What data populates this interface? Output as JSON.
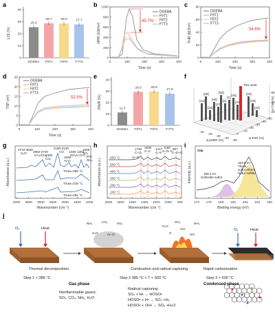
{
  "panels": {
    "a": {
      "label": "a",
      "ylabel": "LOI (%)",
      "ylim": [
        0,
        40
      ],
      "yticks": [
        "0",
        "10",
        "20",
        "30",
        "40"
      ],
      "categories": [
        "DGEBA",
        "F9T1",
        "F8T2",
        "F7T3"
      ],
      "values_text": [
        "25.4",
        "28.7",
        "28.5",
        "27.7"
      ]
    },
    "b": {
      "label": "b",
      "ylabel": "HRR (kW/m²)",
      "xlabel": "Time (s)",
      "yticks": [
        "0",
        "200",
        "400",
        "600",
        "800",
        "1000"
      ],
      "xticks": [
        "0",
        "100",
        "200",
        "300",
        "400"
      ],
      "legend": [
        "DGEBA",
        "F9T1",
        "F8T2",
        "F7T3"
      ],
      "annotation": "45.7%"
    },
    "c": {
      "label": "c",
      "ylabel": "THR (MJ/m²)",
      "xlabel": "Time (s)",
      "yticks": [
        "0",
        "20",
        "40",
        "60",
        "80"
      ],
      "xticks": [
        "0",
        "100",
        "200",
        "300",
        "400"
      ],
      "legend": [
        "DGEBA",
        "F9T1",
        "F8T2",
        "F7T3"
      ],
      "annotation": "54.6%"
    },
    "d": {
      "label": "d",
      "ylabel": "TSP (m²)",
      "xlabel": "Time (s)",
      "yticks": [
        "0",
        "5",
        "10",
        "15",
        "20",
        "25"
      ],
      "xticks": [
        "0",
        "100",
        "200",
        "300",
        "400"
      ],
      "legend": [
        "DGEBA",
        "F9T1",
        "F8T2",
        "F7T3"
      ],
      "annotation": "52.5%"
    },
    "e": {
      "label": "e",
      "ylabel": "RWR (%)",
      "ylim": [
        0,
        40
      ],
      "yticks": [
        "0",
        "10",
        "20",
        "30",
        "40"
      ],
      "categories": [
        "DGEBA",
        "F9T1",
        "F8T2",
        "F7T3"
      ],
      "values_text": [
        "11.3",
        "29.5",
        "29.8",
        "27.8"
      ]
    },
    "f": {
      "label": "f",
      "this_work": "This work",
      "axis1": "Δ pHRR (%)",
      "axis2": "Δ THR (%)",
      "axis3": "Δ TSP (%)",
      "refs": [
        "[41]",
        "[48]",
        "[46]",
        "[45]",
        "[47]",
        "[50]",
        "[2]",
        "[1]",
        "[43]",
        "[44]",
        "[42]",
        "[40]",
        "[22]"
      ],
      "ticks1": [
        "-10",
        "-20",
        "-30",
        "-40",
        "-50"
      ],
      "ticks2": [
        "0",
        "-10",
        "-20",
        "-30",
        "-40",
        "-50"
      ],
      "ticks3": [
        "-20",
        "-40",
        "-60"
      ]
    },
    "g": {
      "label": "g",
      "ylabel": "Absorbance (a.u.)",
      "xlabel": "Wavenumber (cm⁻¹)",
      "xticks": [
        "4000",
        "3500",
        "3000",
        "2500",
        "2000",
        "1500",
        "1000"
      ],
      "peaks": [
        "3710-3580",
        "H₂O",
        "2962-2740",
        "CH₃/CH₂",
        "2360",
        "CO₂",
        "2180-2130",
        "CO",
        "1829",
        "Ar-O",
        "1348",
        "SO₂",
        "1363",
        "Ar-O-C",
        "1059",
        "SO₂",
        "970",
        "NH₃"
      ],
      "temps": [
        "Tmax=385 °C",
        "Tmax=318 °C",
        "Tmax=281 °C"
      ]
    },
    "h": {
      "label": "h",
      "ylabel": "Absorbance (a.u.)",
      "xlabel": "Wavenumber (cm⁻¹)",
      "xticks": [
        "2000",
        "1800",
        "1600",
        "1400",
        "1200",
        "1000",
        "800"
      ],
      "temps": [
        "600 °C",
        "500 °C",
        "400 °C",
        "300 °C",
        "200 °C",
        "100 °C"
      ],
      "peaks": [
        "1730",
        "C=O",
        "1630",
        "C=C",
        "1417",
        "C–S",
        "1160",
        "S–O–C",
        "887",
        "C–O–C",
        "Ar–O"
      ]
    },
    "i": {
      "label": "i",
      "title": "S2p",
      "ylabel": "Intensity (a.u.)",
      "xlabel": "Binding energy (eV)",
      "xticks": [
        "172",
        "170",
        "168",
        "166",
        "164",
        "162",
        "160"
      ],
      "peak1": "163.6 eV",
      "peak1_desc": [
        "Thiols,",
        "sulfur ethers,",
        "sulfur sulfide"
      ],
      "peak2": "168.2 eV",
      "peak2_desc": "Sulfoxide sulfur"
    },
    "j": {
      "label": "j",
      "o2": "O₂",
      "heat": "Heat",
      "step1": "Step 1 < 385 °C",
      "step2": "Step 2 385 °C < T < 500 °C",
      "step3": "Step 3 > 500 °C",
      "arrow1": "Thermal decomposition",
      "arrow2": "Combustion and radical capturing",
      "arrow3": "Rapid carbonization",
      "gas_phase": "Gas phase",
      "condensed_phase": "Condensed phase",
      "gases": [
        "NH₃",
        "CO₂",
        "SO₂",
        "H₂O",
        "Ar–O"
      ],
      "radicals": [
        "H₂O",
        "SO₂",
        "OH",
        "NH₃",
        "H",
        "HO"
      ],
      "nonflam_title": "Nonflammable gases:",
      "nonflam_list": "SO₂, CO₂, NH₃, H₂O",
      "radical_title": "Radical capturing:",
      "radical_eqs": [
        "SO₂ + H• → HOSO•",
        "HOSO• + H• → SO₂ +H₂",
        "HOSO• + OH• → SO₂ +H₂O"
      ]
    }
  },
  "colors": {
    "DGEBA": "#8c8c8c",
    "F9T1": "#f4a6a6",
    "F8T2": "#f7d98c",
    "F7T3": "#a9c4ea",
    "red": "#d7262b"
  }
}
